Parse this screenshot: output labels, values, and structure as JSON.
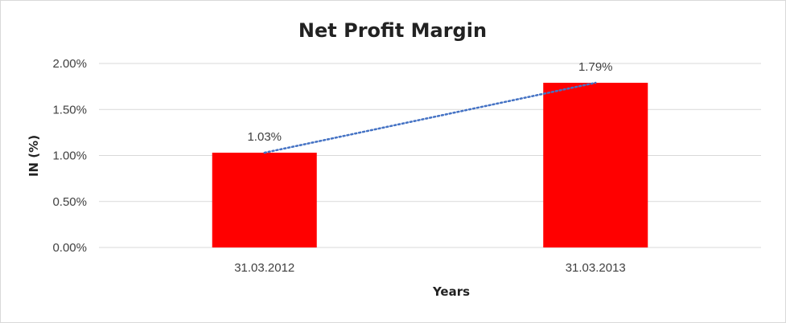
{
  "chart_data": {
    "type": "bar",
    "title": "Net Profit Margin",
    "xlabel": "Years",
    "ylabel": "IN (%)",
    "categories": [
      "31.03.2012",
      "31.03.2013"
    ],
    "values": [
      1.03,
      1.79
    ],
    "data_labels": [
      "1.03%",
      "1.79%"
    ],
    "ylim": [
      0,
      2
    ],
    "yticks": [
      0,
      0.5,
      1,
      1.5,
      2
    ],
    "ytick_labels": [
      "0.00%",
      "0.50%",
      "1.00%",
      "1.50%",
      "2.00%"
    ],
    "grid": true,
    "legend": "none",
    "trendline": "linear",
    "colors": {
      "bar": "#ff0000",
      "trendline": "#4472c4",
      "grid": "#d9d9d9"
    }
  }
}
